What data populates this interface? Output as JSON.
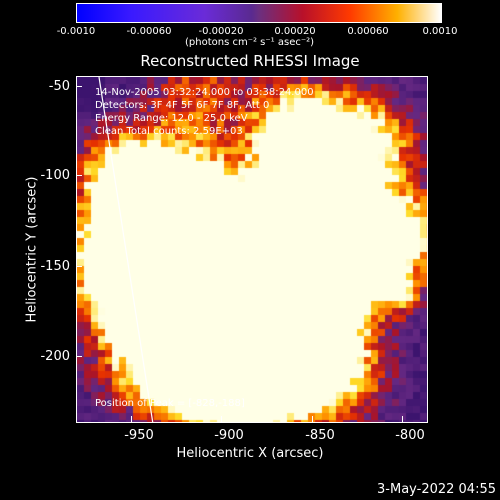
{
  "colorbar": {
    "ticks": [
      "-0.0010",
      "-0.00060",
      "-0.00020",
      "0.00020",
      "0.00060",
      "0.0010"
    ],
    "units": "(photons cm⁻² s⁻¹ asec⁻²)"
  },
  "title": "Reconstructed RHESSI Image",
  "annotations": {
    "time": "14-Nov-2005 03:32:24.000 to 03:38:24.000",
    "detectors": "Detectors: 3F 4F 5F 6F 7F 8F, Att 0",
    "energy": "Energy Range: 12.0 - 25.0 keV",
    "clean": "Clean     Total counts: 2.59E+03",
    "peak": "Position of Peak = [-828,-188]"
  },
  "axes": {
    "xlabel": "Heliocentric X (arcsec)",
    "ylabel": "Heliocentric Y (arcsec)",
    "xticks": [
      "-950",
      "-900",
      "-850",
      "-800"
    ],
    "yticks": [
      "-50",
      "-100",
      "-150",
      "-200"
    ],
    "xrange": [
      -975,
      -785
    ],
    "yrange": [
      -237,
      -43
    ]
  },
  "footer": {
    "date": "3-May-2022 04:55"
  },
  "colors": {
    "background": "#000000",
    "text": "#ffffff"
  }
}
